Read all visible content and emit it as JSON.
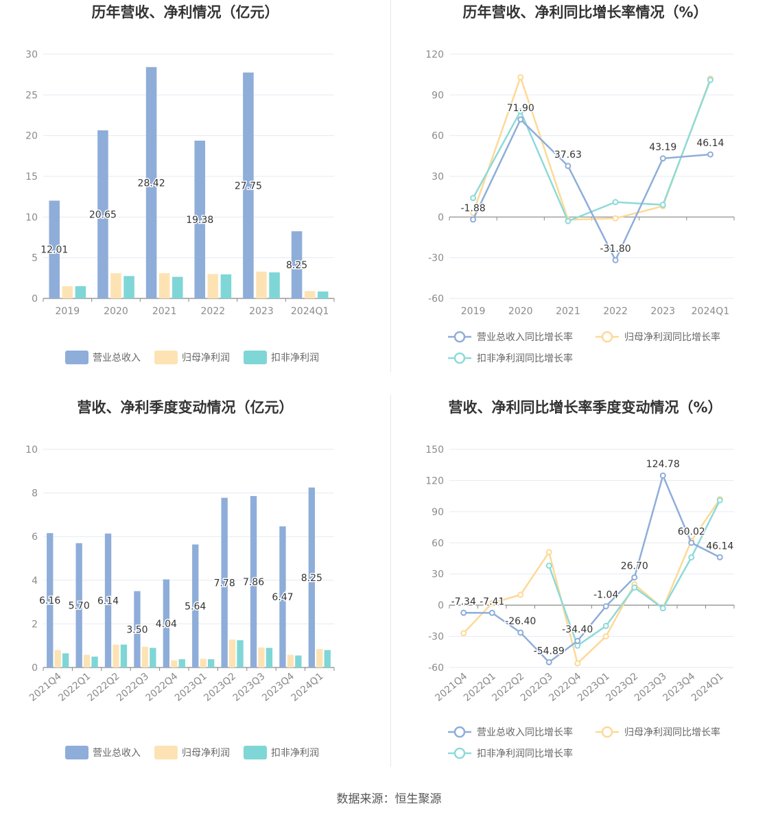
{
  "colors": {
    "revenue": "#8eadd9",
    "net_profit": "#fde3b4",
    "deducted_profit": "#7fd6d6",
    "revenue_line": "#8eadd9",
    "net_line": "#fdd996",
    "deducted_line": "#8ddad8",
    "grid": "#e6e9f2",
    "axis": "#888888"
  },
  "source": "数据来源：恒生聚源",
  "chart_data": [
    {
      "id": "annual_bar",
      "type": "bar",
      "title": "历年营收、净利情况（亿元）",
      "categories": [
        "2019",
        "2020",
        "2021",
        "2022",
        "2023",
        "2024Q1"
      ],
      "ylim": [
        0,
        30
      ],
      "yticks": [
        0,
        5,
        10,
        15,
        20,
        25,
        30
      ],
      "series": [
        {
          "name": "营业总收入",
          "color_key": "revenue",
          "values": [
            12.01,
            20.65,
            28.42,
            19.38,
            27.75,
            8.25
          ],
          "labels": [
            "12.01",
            "20.65",
            "28.42",
            "19.38",
            "27.75",
            "8.25"
          ]
        },
        {
          "name": "归母净利润",
          "color_key": "net_profit",
          "values": [
            1.5,
            3.1,
            3.1,
            3.0,
            3.3,
            0.9
          ]
        },
        {
          "name": "扣非净利润",
          "color_key": "deducted_profit",
          "values": [
            1.5,
            2.75,
            2.65,
            2.95,
            3.2,
            0.85
          ]
        }
      ],
      "legend": "bottom-center",
      "grid": true
    },
    {
      "id": "annual_line",
      "type": "line",
      "title": "历年营收、净利同比增长率情况（%）",
      "categories": [
        "2019",
        "2020",
        "2021",
        "2022",
        "2023",
        "2024Q1"
      ],
      "ylim": [
        -60,
        120
      ],
      "yticks": [
        -60,
        -30,
        0,
        30,
        60,
        90,
        120
      ],
      "series": [
        {
          "name": "营业总收入同比增长率",
          "color_key": "revenue_line",
          "values": [
            -1.88,
            71.9,
            37.63,
            -31.8,
            43.19,
            46.14
          ],
          "labels": [
            "-1.88",
            "71.90",
            "37.63",
            "-31.80",
            "43.19",
            "46.14"
          ]
        },
        {
          "name": "归母净利润同比增长率",
          "color_key": "net_line",
          "values": [
            3,
            103,
            -2,
            -1,
            8,
            102
          ]
        },
        {
          "name": "扣非净利润同比增长率",
          "color_key": "deducted_line",
          "values": [
            14,
            78,
            -3,
            11,
            9,
            101
          ]
        }
      ],
      "legend": "bottom",
      "grid": true
    },
    {
      "id": "quarter_bar",
      "type": "bar",
      "title": "营收、净利季度变动情况（亿元）",
      "categories": [
        "2021Q4",
        "2022Q1",
        "2022Q2",
        "2022Q3",
        "2022Q4",
        "2023Q1",
        "2023Q2",
        "2023Q3",
        "2023Q4",
        "2024Q1"
      ],
      "ylim": [
        0,
        10
      ],
      "yticks": [
        0,
        2,
        4,
        6,
        8,
        10
      ],
      "series": [
        {
          "name": "营业总收入",
          "color_key": "revenue",
          "values": [
            6.16,
            5.7,
            6.14,
            3.5,
            4.04,
            5.64,
            7.78,
            7.86,
            6.47,
            8.25
          ],
          "labels": [
            "6.16",
            "5.70",
            "6.14",
            "3.50",
            "4.04",
            "5.64",
            "7.78",
            "7.86",
            "6.47",
            "8.25"
          ]
        },
        {
          "name": "归母净利润",
          "color_key": "net_profit",
          "values": [
            0.8,
            0.58,
            1.05,
            0.95,
            0.33,
            0.4,
            1.28,
            0.92,
            0.58,
            0.85
          ]
        },
        {
          "name": "扣非净利润",
          "color_key": "deducted_profit",
          "values": [
            0.65,
            0.5,
            1.05,
            0.9,
            0.38,
            0.38,
            1.25,
            0.9,
            0.55,
            0.8
          ]
        }
      ],
      "legend": "bottom-center",
      "grid": true
    },
    {
      "id": "quarter_line",
      "type": "line",
      "title": "营收、净利同比增长率季度变动情况（%）",
      "categories": [
        "2021Q4",
        "2022Q1",
        "2022Q2",
        "2022Q3",
        "2022Q4",
        "2023Q1",
        "2023Q2",
        "2023Q3",
        "2023Q4",
        "2024Q1"
      ],
      "ylim": [
        -60,
        150
      ],
      "yticks": [
        -60,
        -30,
        0,
        30,
        60,
        90,
        120,
        150
      ],
      "series": [
        {
          "name": "营业总收入同比增长率",
          "color_key": "revenue_line",
          "values": [
            -7.34,
            -7.41,
            -26.4,
            -54.89,
            -34.4,
            -1.04,
            26.7,
            124.78,
            60.02,
            46.14
          ],
          "labels": [
            "-7.34",
            "-7.41",
            "-26.40",
            "-54.89",
            "-34.40",
            "-1.04",
            "26.70",
            "124.78",
            "60.02",
            "46.14"
          ]
        },
        {
          "name": "归母净利润同比增长率",
          "color_key": "net_line",
          "values": [
            -27,
            2,
            10,
            51,
            -56,
            -30,
            20,
            -3,
            62,
            102
          ]
        },
        {
          "name": "扣非净利润同比增长率",
          "color_key": "deducted_line",
          "values": [
            null,
            null,
            null,
            38,
            -39,
            -20,
            17,
            -3,
            46,
            101
          ]
        }
      ],
      "legend": "bottom",
      "grid": true
    }
  ]
}
